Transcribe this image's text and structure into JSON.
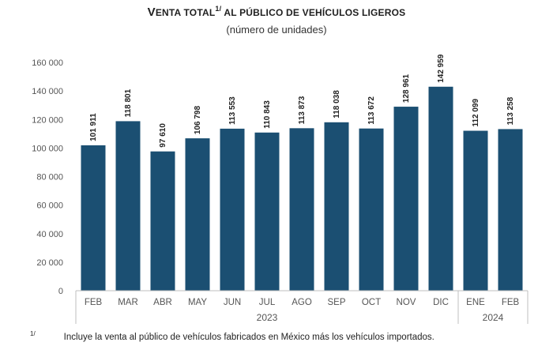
{
  "title": {
    "prefix_cap": "V",
    "prefix_rest": "ENTA TOTAL",
    "sup": "1/",
    "rest": " AL PÚBLICO DE VEHÍCULOS LIGEROS"
  },
  "subtitle": "(número de unidades)",
  "footnote": {
    "mark": "1/",
    "text": "Incluye la venta al público de vehículos fabricados en México más los vehículos importados."
  },
  "colors": {
    "bar": "#1b4f72",
    "axis": "#bfbfbf"
  },
  "chart_data": {
    "type": "bar",
    "categories": [
      "FEB",
      "MAR",
      "ABR",
      "MAY",
      "JUN",
      "JUL",
      "AGO",
      "SEP",
      "OCT",
      "NOV",
      "DIC",
      "ENE",
      "FEB"
    ],
    "values": [
      101911,
      118801,
      97610,
      106798,
      113553,
      110843,
      113873,
      118038,
      113672,
      128961,
      142959,
      112099,
      113258
    ],
    "data_labels": [
      "101 911",
      "118 801",
      "97 610",
      "106 798",
      "113 553",
      "110 843",
      "113 873",
      "118 038",
      "113 672",
      "128 961",
      "142 959",
      "112 099",
      "113 258"
    ],
    "year_groups": [
      {
        "label": "2023",
        "start": 0,
        "end": 10
      },
      {
        "label": "2024",
        "start": 11,
        "end": 12
      }
    ],
    "yticks": [
      "0",
      "20 000",
      "40 000",
      "60 000",
      "80 000",
      "100 000",
      "120 000",
      "140 000",
      "160 000"
    ],
    "ylim": [
      0,
      160000
    ],
    "grid": false,
    "xlabel": "",
    "ylabel": ""
  }
}
